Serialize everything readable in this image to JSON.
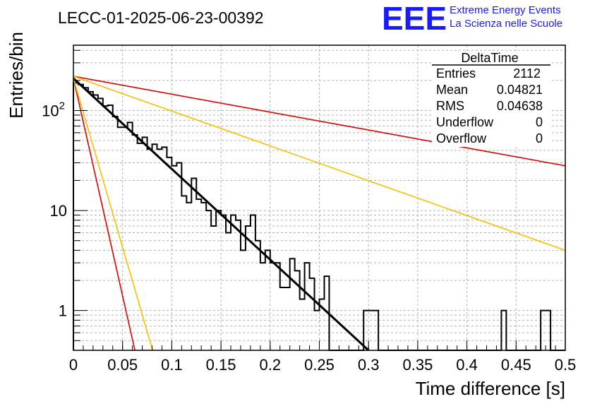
{
  "header": {
    "run_title": "LECC-01-2025-06-23-00392",
    "logo_text": "EEE",
    "logo_line1": "Extreme Energy Events",
    "logo_line2": "La Scienza nelle Scuole"
  },
  "stats_box": {
    "title": "DeltaTime",
    "rows": [
      {
        "label": "Entries",
        "value": "2112"
      },
      {
        "label": "Mean",
        "value": "0.04821"
      },
      {
        "label": "RMS",
        "value": "0.04638"
      },
      {
        "label": "Underflow",
        "value": "0"
      },
      {
        "label": "Overflow",
        "value": "0"
      }
    ]
  },
  "colors": {
    "histogram": "#000000",
    "fit": "#000000",
    "red_lines": "#dd0000",
    "yellow_lines": "#f5c000",
    "grid": "#b0b0b0",
    "logo": "#1a1aff"
  },
  "chart_data": {
    "type": "histogram",
    "xlabel": "Time difference [s]",
    "ylabel": "Entries/bin",
    "xlim": [
      0,
      0.5
    ],
    "ylim": [
      0.4,
      450
    ],
    "yscale": "log",
    "grid": true,
    "x_ticks": [
      "0",
      "0.05",
      "0.1",
      "0.15",
      "0.2",
      "0.25",
      "0.3",
      "0.35",
      "0.4",
      "0.45",
      "0.5"
    ],
    "y_ticks": [
      "1",
      "10",
      "10^2"
    ],
    "bin_width": 0.005,
    "counts": [
      189,
      182,
      169,
      154,
      143,
      132,
      111,
      113,
      87,
      68,
      68,
      76,
      57,
      47,
      54,
      41,
      46,
      41,
      43,
      34,
      28,
      30,
      14,
      12,
      21,
      13,
      12,
      10,
      7,
      10,
      9,
      6,
      9,
      8,
      4,
      7,
      9,
      5,
      3,
      4,
      3,
      3,
      1.7,
      1.7,
      3.3,
      2.5,
      1.3,
      3,
      2.1,
      1,
      1.3,
      2.2,
      0,
      0,
      0,
      0,
      0,
      0,
      0,
      1,
      1,
      1,
      0,
      0,
      0,
      0,
      0,
      0,
      0,
      0,
      0,
      0,
      0,
      0,
      0,
      0,
      0,
      0,
      0,
      0,
      0,
      0,
      0,
      0,
      0,
      0,
      0,
      1,
      0,
      0,
      0,
      0,
      0,
      0,
      0,
      1,
      1,
      0,
      0,
      0
    ],
    "series": [
      {
        "name": "exponential fit",
        "points": [
          [
            0.0,
            210
          ],
          [
            0.3,
            0.4
          ]
        ]
      },
      {
        "points": [
          [
            0.0,
            220
          ],
          [
            0.5,
            28
          ]
        ]
      },
      {
        "points": [
          [
            0.0,
            220
          ],
          [
            0.5,
            4
          ]
        ]
      },
      {
        "points": [
          [
            0.0,
            210
          ],
          [
            0.0625,
            0.4
          ]
        ]
      },
      {
        "points": [
          [
            0.0,
            210
          ],
          [
            0.0805,
            0.4
          ]
        ]
      }
    ]
  }
}
